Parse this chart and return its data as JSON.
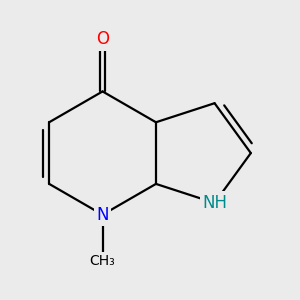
{
  "background_color": "#ebebeb",
  "bond_color": "#000000",
  "atom_colors": {
    "O": "#ff0000",
    "N_methyl": "#0000ff",
    "NH": "#008b8b"
  },
  "font_size_atoms": 12,
  "font_size_small": 10,
  "lw": 1.6
}
